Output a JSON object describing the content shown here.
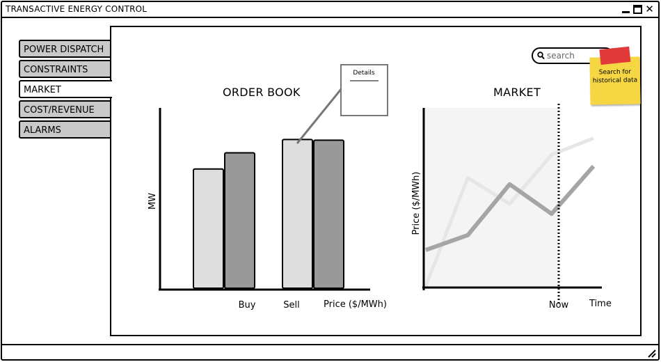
{
  "window": {
    "title": "TRANSACTIVE ENERGY CONTROL"
  },
  "tabs": [
    {
      "label": "POWER DISPATCH",
      "active": false
    },
    {
      "label": "CONSTRAINTS",
      "active": false
    },
    {
      "label": "MARKET",
      "active": true
    },
    {
      "label": "COST/REVENUE",
      "active": false
    },
    {
      "label": "ALARMS",
      "active": false
    }
  ],
  "search": {
    "placeholder": "search"
  },
  "sticky_note": {
    "text": "Search for historical data"
  },
  "colors": {
    "light_bar": "#dedede",
    "dark_bar": "#999999",
    "tab_bg": "#c9c9c9",
    "sticky": "#f6d743",
    "tape": "#e13a3a"
  },
  "chart_data": [
    {
      "type": "bar",
      "title": "ORDER BOOK",
      "ylabel": "MW",
      "xlabel": "Price ($/MWh)",
      "categories": [
        "Buy",
        "Sell"
      ],
      "series": [
        {
          "values": [
            170,
            212
          ]
        },
        {
          "values": [
            193,
            211
          ]
        }
      ],
      "ylim": [
        0,
        260
      ],
      "annotation": {
        "label": "Details"
      }
    },
    {
      "type": "line",
      "title": "MARKET",
      "ylabel": "Price ($/MWh)",
      "xlabel": "Time",
      "marker_label": "Now",
      "x": [
        0,
        1,
        2,
        3,
        4
      ],
      "series": [
        {
          "values": [
            0.22,
            0.31,
            0.62,
            0.44,
            0.73
          ]
        },
        {
          "values": [
            0,
            0.66,
            0.5,
            0.8,
            0.9
          ]
        }
      ]
    }
  ]
}
